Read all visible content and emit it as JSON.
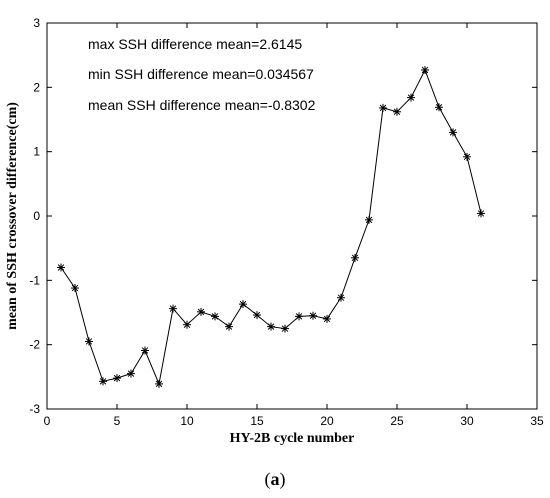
{
  "chart_data": {
    "type": "line",
    "xlabel": "HY-2B cycle number",
    "ylabel": "mean of SSH crossover difference(cm)",
    "xlim": [
      0,
      35
    ],
    "ylim": [
      -3,
      3
    ],
    "xticks": [
      0,
      5,
      10,
      15,
      20,
      25,
      30,
      35
    ],
    "yticks": [
      -3,
      -2,
      -1,
      0,
      1,
      2,
      3
    ],
    "grid": false,
    "marker": "asterisk",
    "line_color": "#000000",
    "annotations": [
      "max SSH difference mean=2.6145",
      "min SSH difference mean=0.034567",
      "mean SSH difference mean=-0.8302"
    ],
    "x": [
      1,
      2,
      3,
      4,
      5,
      6,
      7,
      8,
      9,
      10,
      11,
      12,
      13,
      14,
      15,
      16,
      17,
      18,
      19,
      20,
      21,
      22,
      23,
      24,
      25,
      26,
      27,
      28,
      29,
      30,
      31
    ],
    "values": [
      -0.8,
      -1.12,
      -1.95,
      -2.57,
      -2.52,
      -2.45,
      -2.09,
      -2.61,
      -1.44,
      -1.69,
      -1.49,
      -1.56,
      -1.72,
      -1.37,
      -1.54,
      -1.72,
      -1.75,
      -1.56,
      -1.55,
      -1.6,
      -1.27,
      -0.65,
      -0.06,
      1.68,
      1.62,
      1.84,
      2.27,
      1.69,
      1.3,
      0.92,
      0.04
    ]
  },
  "caption": {
    "open": "(",
    "letter": "a",
    "close": ")"
  }
}
